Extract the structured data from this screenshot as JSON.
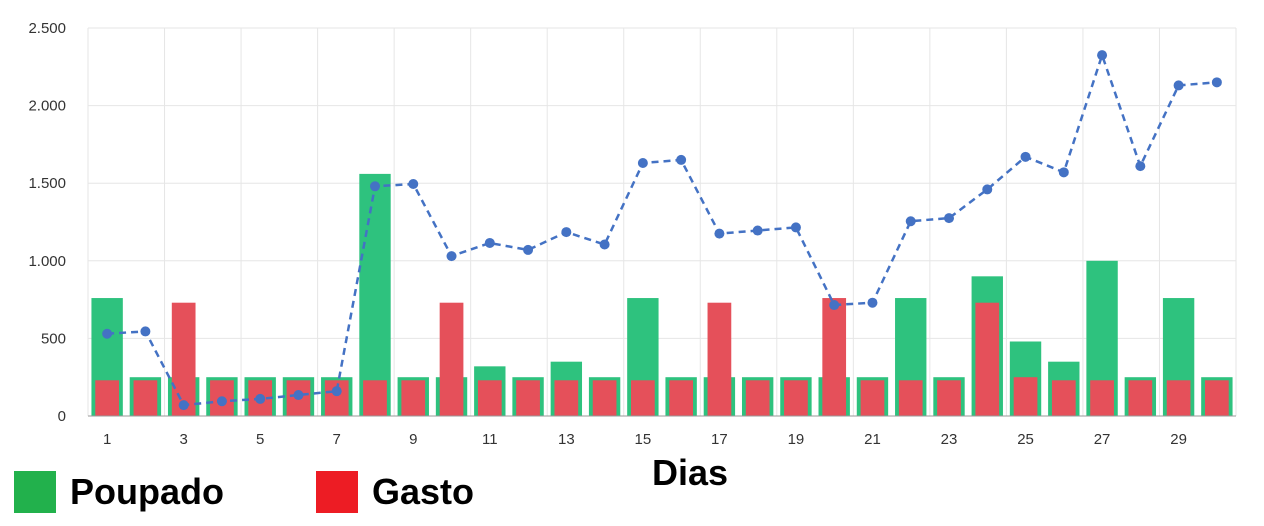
{
  "chart_data": {
    "type": "bar",
    "xlabel": "Dias",
    "ylabel": "",
    "title": "",
    "ylim": [
      0,
      2500
    ],
    "yticks": [
      0,
      500,
      1000,
      1500,
      2000,
      2500
    ],
    "ytick_labels": [
      "0",
      "500",
      "1.000",
      "1.500",
      "2.000",
      "2.500"
    ],
    "x": [
      1,
      2,
      3,
      4,
      5,
      6,
      7,
      8,
      9,
      10,
      11,
      12,
      13,
      14,
      15,
      16,
      17,
      18,
      19,
      20,
      21,
      22,
      23,
      24,
      25,
      26,
      27,
      28,
      29,
      30
    ],
    "xtick_labels": [
      "1",
      "3",
      "5",
      "7",
      "9",
      "11",
      "13",
      "15",
      "17",
      "19",
      "21",
      "23",
      "25",
      "27",
      "29"
    ],
    "grid": true,
    "legend_position": "bottom-left",
    "series": [
      {
        "name": "Poupado",
        "kind": "bar",
        "color": "#2ec27e",
        "values": [
          760,
          250,
          250,
          250,
          250,
          250,
          250,
          1560,
          250,
          250,
          320,
          250,
          350,
          250,
          760,
          250,
          250,
          250,
          250,
          250,
          250,
          760,
          250,
          900,
          480,
          350,
          1000,
          250,
          760,
          250
        ]
      },
      {
        "name": "Gasto",
        "kind": "bar",
        "color": "#e5505a",
        "values": [
          230,
          230,
          730,
          230,
          230,
          230,
          230,
          230,
          230,
          730,
          230,
          230,
          230,
          230,
          230,
          230,
          730,
          230,
          230,
          760,
          230,
          230,
          230,
          730,
          250,
          230,
          230,
          230,
          230,
          230
        ]
      },
      {
        "kind": "line",
        "style": "dashed",
        "color": "#4472c4",
        "values": [
          530,
          545,
          70,
          95,
          110,
          135,
          160,
          1480,
          1495,
          1030,
          1115,
          1070,
          1185,
          1105,
          1630,
          1650,
          1175,
          1195,
          1215,
          715,
          730,
          1255,
          1275,
          1460,
          1670,
          1570,
          2325,
          1610,
          2130,
          2150
        ]
      }
    ]
  },
  "legend": {
    "items": [
      {
        "label": "Poupado",
        "color": "#22b14c"
      },
      {
        "label": "Gasto",
        "color": "#ed1c24"
      }
    ]
  }
}
